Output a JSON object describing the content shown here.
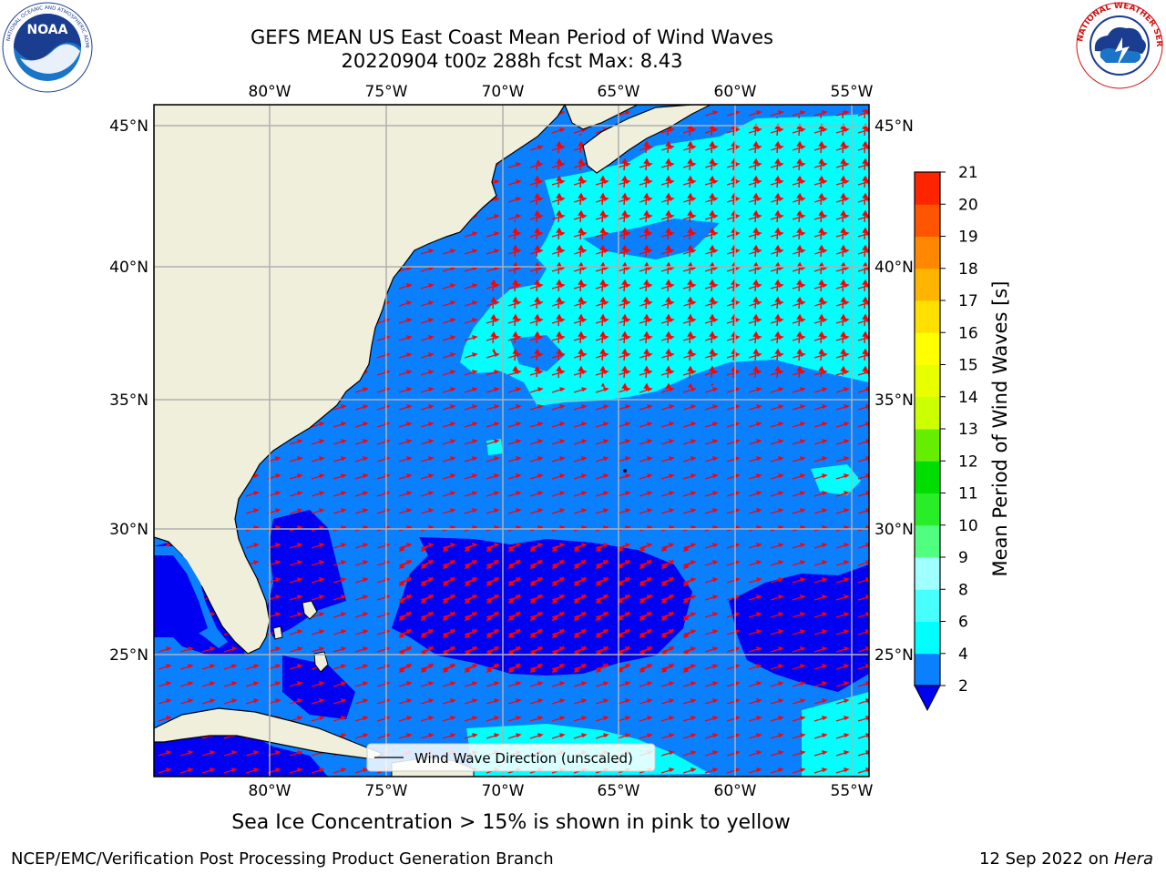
{
  "title": {
    "line1": "GEFS MEAN US East Coast Mean Period of Wind Waves",
    "line2": "20220904 t00z 288h fcst   Max: 8.43"
  },
  "logos": {
    "left": {
      "name": "noaa-logo",
      "text": "NOAA"
    },
    "right": {
      "name": "nws-logo",
      "text": "NATIONAL WEATHER SERVICE"
    }
  },
  "map": {
    "lon_ticks": [
      "80°W",
      "75°W",
      "70°W",
      "65°W",
      "60°W",
      "55°W"
    ],
    "lon_values": [
      -80,
      -75,
      -70,
      -65,
      -60,
      -55
    ],
    "lat_ticks": [
      "45°N",
      "40°N",
      "35°N",
      "30°N",
      "25°N"
    ],
    "lat_values": [
      45,
      40,
      35,
      30,
      25
    ],
    "lon_range": [
      -85,
      -54.5
    ],
    "lat_range": [
      20.5,
      46
    ],
    "legend_label": "Wind Wave Direction (unscaled)",
    "colors": {
      "land": "#efefdc",
      "p2_4": "#0a80ff",
      "p4_6": "#00ffff",
      "under_2": "#0000f2",
      "arrow": "#ff0000",
      "grid": "#b0b0b0"
    }
  },
  "colorbar": {
    "label": "Mean Period of Wind Waves [s]",
    "ticks": [
      "2",
      "4",
      "6",
      "8",
      "9",
      "10",
      "11",
      "12",
      "13",
      "14",
      "15",
      "16",
      "17",
      "18",
      "19",
      "20",
      "21"
    ],
    "colors": [
      "#0a80ff",
      "#00ffff",
      "#48ffff",
      "#a0ffff",
      "#50ff80",
      "#28ee28",
      "#00dd00",
      "#66ee00",
      "#ccff00",
      "#e8ff00",
      "#ffff00",
      "#ffe000",
      "#ffb400",
      "#ff8800",
      "#ff5400",
      "#ff2400"
    ],
    "under_color": "#0000f2"
  },
  "note": "Sea Ice Concentration > 15% is shown in pink to yellow",
  "footer": {
    "left": "NCEP/EMC/Verification Post Processing Product Generation Branch",
    "date": "12 Sep 2022 on ",
    "machine": "Hera"
  }
}
